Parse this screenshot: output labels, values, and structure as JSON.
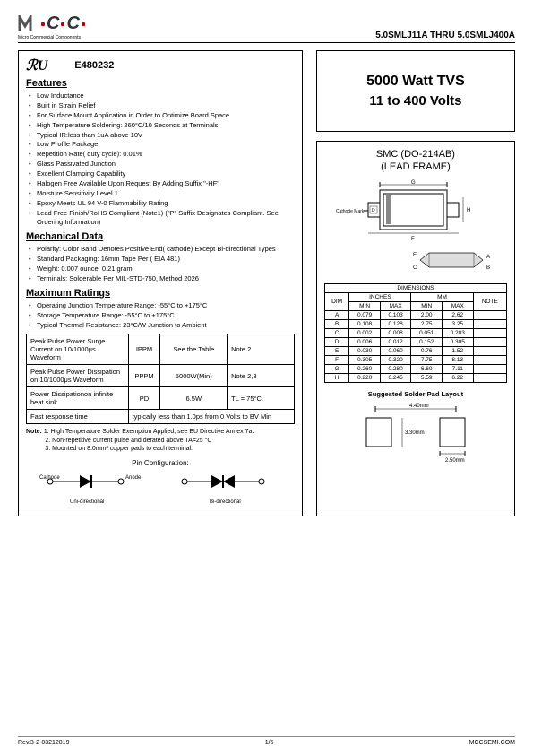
{
  "header": {
    "logo_sub": "Micro Commercial Components",
    "partrange": "5.0SMLJ11A THRU 5.0SMLJ400A"
  },
  "ul": {
    "mark": "RU",
    "code": "E480232"
  },
  "sections": {
    "features": "Features",
    "mechanical": "Mechanical Data",
    "maximum": "Maximum Ratings"
  },
  "features": [
    "Low Inductance",
    "Built in Strain Relief",
    "For Surface Mount Application in Order to Optimize Board Space",
    "High Temperature Soldering: 260°C/10 Seconds at Terminals",
    "Typical IR:less than 1uA above 10V",
    "Low Profile Package",
    "Repetition Rate( duty cycle): 0.01%",
    "Glass Passivated Junction",
    "Excellent Clamping Capability",
    "Halogen Free Available Upon Request By Adding Suffix \"-HF\"",
    "Moisture Sensitivity Level 1",
    "Epoxy Meets UL 94 V-0 Flammability Rating",
    "Lead Free Finish/RoHS Compliant  (Note1) (\"P\" Suffix Designates Compliant. See Ordering Information)"
  ],
  "mechanical": [
    "Polarity: Color Band Denotes Positive End( cathode) Except Bi-directional Types",
    "Standard Packaging: 16mm Tape Per ( EIA 481)",
    "Weight: 0.007 ounce, 0.21 gram",
    "Terminals: Solderable Per MIL-STD-750, Method 2026"
  ],
  "maximum": [
    "Operating Junction Temperature Range: -55°C to +175°C",
    "Storage Temperature Range: -55°C to +175°C",
    "Typical Thermal Resistance: 23°C/W Junction to Ambient"
  ],
  "ratings_table": {
    "rows": [
      {
        "p": "Peak Pulse Power Surge Current on 10/1000μs  Waveform",
        "s": "IPPM",
        "v": "See the Table",
        "n": "Note 2"
      },
      {
        "p": "Peak Pulse Power Dissipation on 10/1000μs Waveform",
        "s": "PPPM",
        "v": "5000W(Min)",
        "n": "Note 2,3"
      },
      {
        "p": "Power Dissipationon infinite heat sink",
        "s": "PD",
        "v": "6.5W",
        "n": "TL = 75°C."
      },
      {
        "p": "Fast response time",
        "s": "",
        "v": "typically less than 1.0ps from 0 Volts to BV Min",
        "n": ""
      }
    ]
  },
  "notes_label": "Note:",
  "notes": [
    "1. High Temperature Solder Exemption Applied, see EU Directive Annex 7a.",
    "2. Non-repetitive current pulse and derated above TA=25 °C",
    "3. Mounted on 8.0mm² copper pads to each terminal."
  ],
  "pincfg": {
    "title": "Pin Configuration:",
    "cathode": "Cathode",
    "anode": "Anode",
    "uni": "Uni-directional",
    "bi": "Bi-directional"
  },
  "title_box": {
    "l1": "5000 Watt TVS",
    "l2": "11 to 400 Volts"
  },
  "pkg": {
    "title": "SMC (DO-214AB)",
    "sub": "(LEAD FRAME)"
  },
  "dim_table": {
    "header": "DIMENSIONS",
    "cols": [
      "DIM",
      "INCHES",
      "MM",
      "NOTE"
    ],
    "sub": [
      "MIN",
      "MAX",
      "MIN",
      "MAX"
    ],
    "rows": [
      [
        "A",
        "0.079",
        "0.103",
        "2.00",
        "2.62",
        ""
      ],
      [
        "B",
        "0.108",
        "0.128",
        "2.75",
        "3.25",
        ""
      ],
      [
        "C",
        "0.002",
        "0.008",
        "0.051",
        "0.203",
        ""
      ],
      [
        "D",
        "0.006",
        "0.012",
        "0.152",
        "0.305",
        ""
      ],
      [
        "E",
        "0.030",
        "0.060",
        "0.76",
        "1.52",
        ""
      ],
      [
        "F",
        "0.305",
        "0.320",
        "7.75",
        "8.13",
        ""
      ],
      [
        "G",
        "0.260",
        "0.280",
        "6.60",
        "7.11",
        ""
      ],
      [
        "H",
        "0.220",
        "0.245",
        "5.59",
        "6.22",
        ""
      ]
    ]
  },
  "solder": {
    "title": "Suggested Solder Pad Layout",
    "w": "4.40mm",
    "h": "3.30mm",
    "pad": "2.50mm"
  },
  "diagram": {
    "cathode_mark": "Cathode Mark",
    "labels": [
      "G",
      "H",
      "F",
      "D",
      "A",
      "E",
      "B",
      "C"
    ]
  },
  "footer": {
    "rev": "Rev.3-2-03212019",
    "page": "1/5",
    "site": "MCCSEMI.COM"
  }
}
